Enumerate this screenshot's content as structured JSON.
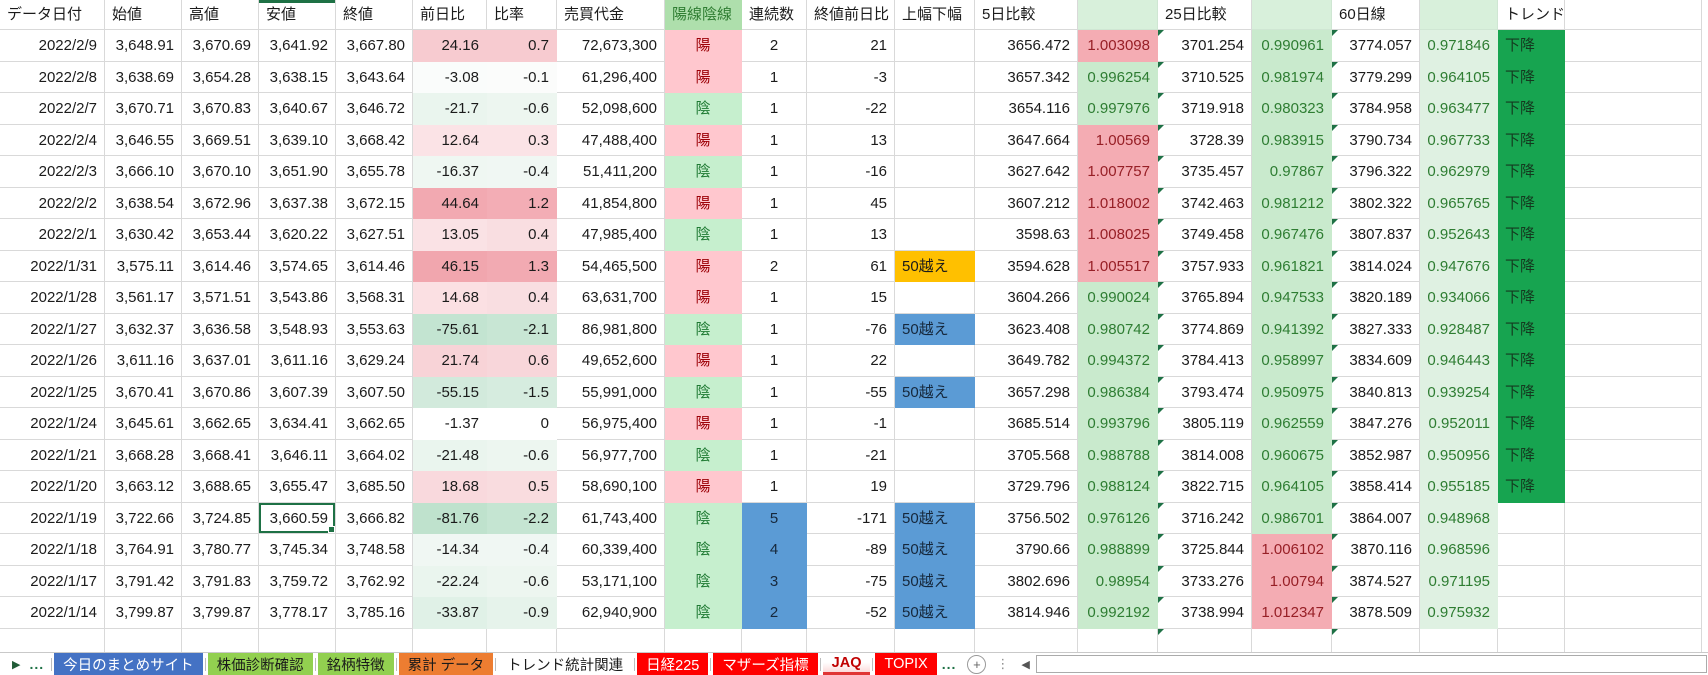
{
  "columns": [
    {
      "key": "date",
      "label": "データ日付",
      "cls": "num"
    },
    {
      "key": "open",
      "label": "始値",
      "cls": "num"
    },
    {
      "key": "high",
      "label": "高値",
      "cls": "num"
    },
    {
      "key": "low",
      "label": "安値",
      "cls": "num",
      "hcls": "selcol"
    },
    {
      "key": "close",
      "label": "終値",
      "cls": "num"
    },
    {
      "key": "chg",
      "label": "前日比",
      "cls": "num",
      "bgKey": "chg_bg"
    },
    {
      "key": "rate",
      "label": "比率",
      "cls": "num",
      "bgKey": "rate_bg"
    },
    {
      "key": "volume",
      "label": "売買代金",
      "cls": "num"
    },
    {
      "key": "candle",
      "label": "陽線陰線",
      "cls": "ctr",
      "clsKey": "candle_cls",
      "hcls": "hcandle"
    },
    {
      "key": "streak",
      "label": "連続数",
      "cls": "ctr",
      "clsKey": "streak_cls"
    },
    {
      "key": "diff",
      "label": "終値前日比",
      "cls": "num"
    },
    {
      "key": "range",
      "label": "上幅下幅",
      "cls": "left",
      "clsKey": "range_cls"
    },
    {
      "key": "d5",
      "label": "5日比較",
      "cls": "num"
    },
    {
      "key": "r5",
      "label": "",
      "cls": "num",
      "clsKey": "r5_cls",
      "hcls": "hgreen"
    },
    {
      "key": "d25",
      "label": "25日比較",
      "cls": "num tri"
    },
    {
      "key": "r25",
      "label": "",
      "cls": "num",
      "clsKey": "r25_cls",
      "hcls": "hgreen"
    },
    {
      "key": "d60",
      "label": "60日線",
      "cls": "num tri"
    },
    {
      "key": "r60",
      "label": "",
      "cls": "num",
      "clsKey": "r60_cls",
      "hcls": "hgreen"
    },
    {
      "key": "trend",
      "label": "トレンド",
      "cls": "left",
      "clsKey": "trend_cls"
    },
    {
      "key": "",
      "label": "",
      "cls": "filler"
    },
    {
      "key": "",
      "label": "",
      "cls": "edge"
    }
  ],
  "rows": [
    {
      "date": "2022/2/9",
      "open": "3,648.91",
      "high": "3,670.69",
      "low": "3,641.92",
      "close": "3,667.80",
      "chg": "24.16",
      "rate": "0.7",
      "volume": "72,673,300",
      "candle": "陽",
      "candle_cls": "yo",
      "streak": "2",
      "streak_cls": "",
      "diff": "21",
      "range": "",
      "range_cls": "",
      "d5": "3656.472",
      "r5": "1.003098",
      "r5_cls": "pink",
      "d25": "3701.254",
      "r25": "0.990961",
      "r25_cls": "green",
      "d60": "3774.057",
      "r60": "0.971846",
      "r60_cls": "green60",
      "trend": "下降",
      "trend_cls": "down",
      "chg_bg": "#F7CBD0",
      "rate_bg": "#F7CBD0"
    },
    {
      "date": "2022/2/8",
      "open": "3,638.69",
      "high": "3,654.28",
      "low": "3,638.15",
      "close": "3,643.64",
      "chg": "-3.08",
      "rate": "-0.1",
      "volume": "61,296,400",
      "candle": "陽",
      "candle_cls": "yo",
      "streak": "1",
      "streak_cls": "",
      "diff": "-3",
      "range": "",
      "range_cls": "",
      "d5": "3657.342",
      "r5": "0.996254",
      "r5_cls": "green",
      "d25": "3710.525",
      "r25": "0.981974",
      "r25_cls": "green",
      "d60": "3779.299",
      "r60": "0.964105",
      "r60_cls": "green60",
      "trend": "下降",
      "trend_cls": "down",
      "chg_bg": "#FAFCFB",
      "rate_bg": "#FBFCFB"
    },
    {
      "date": "2022/2/7",
      "open": "3,670.71",
      "high": "3,670.83",
      "low": "3,640.67",
      "close": "3,646.72",
      "chg": "-21.7",
      "rate": "-0.6",
      "volume": "52,098,600",
      "candle": "陰",
      "candle_cls": "in",
      "streak": "1",
      "streak_cls": "",
      "diff": "-22",
      "range": "",
      "range_cls": "",
      "d5": "3654.116",
      "r5": "0.997976",
      "r5_cls": "green",
      "d25": "3719.918",
      "r25": "0.980323",
      "r25_cls": "green",
      "d60": "3784.958",
      "r60": "0.963477",
      "r60_cls": "green60",
      "trend": "下降",
      "trend_cls": "down",
      "chg_bg": "#EAF5EE",
      "rate_bg": "#EDF6F0"
    },
    {
      "date": "2022/2/4",
      "open": "3,646.55",
      "high": "3,669.51",
      "low": "3,639.10",
      "close": "3,668.42",
      "chg": "12.64",
      "rate": "0.3",
      "volume": "47,488,400",
      "candle": "陽",
      "candle_cls": "yo",
      "streak": "1",
      "streak_cls": "",
      "diff": "13",
      "range": "",
      "range_cls": "",
      "d5": "3647.664",
      "r5": "1.00569",
      "r5_cls": "pink",
      "d25": "3728.39",
      "r25": "0.983915",
      "r25_cls": "green",
      "d60": "3790.734",
      "r60": "0.967733",
      "r60_cls": "green60",
      "trend": "下降",
      "trend_cls": "down",
      "chg_bg": "#FBE3E6",
      "rate_bg": "#FBE3E6"
    },
    {
      "date": "2022/2/3",
      "open": "3,666.10",
      "high": "3,670.10",
      "low": "3,651.90",
      "close": "3,655.78",
      "chg": "-16.37",
      "rate": "-0.4",
      "volume": "51,411,200",
      "candle": "陰",
      "candle_cls": "in",
      "streak": "1",
      "streak_cls": "",
      "diff": "-16",
      "range": "",
      "range_cls": "",
      "d5": "3627.642",
      "r5": "1.007757",
      "r5_cls": "pink",
      "d25": "3735.457",
      "r25": "0.97867",
      "r25_cls": "green",
      "d60": "3796.322",
      "r60": "0.962979",
      "r60_cls": "green60",
      "trend": "下降",
      "trend_cls": "down",
      "chg_bg": "#EFF7F2",
      "rate_bg": "#F0F7F3"
    },
    {
      "date": "2022/2/2",
      "open": "3,638.54",
      "high": "3,672.96",
      "low": "3,637.38",
      "close": "3,672.15",
      "chg": "44.64",
      "rate": "1.2",
      "volume": "41,854,800",
      "candle": "陽",
      "candle_cls": "yo",
      "streak": "1",
      "streak_cls": "",
      "diff": "45",
      "range": "",
      "range_cls": "",
      "d5": "3607.212",
      "r5": "1.018002",
      "r5_cls": "pink",
      "d25": "3742.463",
      "r25": "0.981212",
      "r25_cls": "green",
      "d60": "3802.322",
      "r60": "0.965765",
      "r60_cls": "green60",
      "trend": "下降",
      "trend_cls": "down",
      "chg_bg": "#F2A9B1",
      "rate_bg": "#F3ADB5"
    },
    {
      "date": "2022/2/1",
      "open": "3,630.42",
      "high": "3,653.44",
      "low": "3,620.22",
      "close": "3,627.51",
      "chg": "13.05",
      "rate": "0.4",
      "volume": "47,985,400",
      "candle": "陰",
      "candle_cls": "in",
      "streak": "1",
      "streak_cls": "",
      "diff": "13",
      "range": "",
      "range_cls": "",
      "d5": "3598.63",
      "r5": "1.008025",
      "r5_cls": "pink",
      "d25": "3749.458",
      "r25": "0.967476",
      "r25_cls": "green",
      "d60": "3807.837",
      "r60": "0.952643",
      "r60_cls": "green60",
      "trend": "下降",
      "trend_cls": "down",
      "chg_bg": "#FAE2E5",
      "rate_bg": "#F9DEE1"
    },
    {
      "date": "2022/1/31",
      "open": "3,575.11",
      "high": "3,614.46",
      "low": "3,574.65",
      "close": "3,614.46",
      "chg": "46.15",
      "rate": "1.3",
      "volume": "54,465,500",
      "candle": "陽",
      "candle_cls": "yo",
      "streak": "2",
      "streak_cls": "",
      "diff": "61",
      "range": "50越え",
      "range_cls": "orange",
      "d5": "3594.628",
      "r5": "1.005517",
      "r5_cls": "pink",
      "d25": "3757.933",
      "r25": "0.961821",
      "r25_cls": "green",
      "d60": "3814.024",
      "r60": "0.947676",
      "r60_cls": "green60",
      "trend": "下降",
      "trend_cls": "down",
      "chg_bg": "#F1A6AE",
      "rate_bg": "#F2AAB2"
    },
    {
      "date": "2022/1/28",
      "open": "3,561.17",
      "high": "3,571.51",
      "low": "3,543.86",
      "close": "3,568.31",
      "chg": "14.68",
      "rate": "0.4",
      "volume": "63,631,700",
      "candle": "陽",
      "candle_cls": "yo",
      "streak": "1",
      "streak_cls": "",
      "diff": "15",
      "range": "",
      "range_cls": "",
      "d5": "3604.266",
      "r5": "0.990024",
      "r5_cls": "green",
      "d25": "3765.894",
      "r25": "0.947533",
      "r25_cls": "green",
      "d60": "3820.189",
      "r60": "0.934066",
      "r60_cls": "green60",
      "trend": "下降",
      "trend_cls": "down",
      "chg_bg": "#FBE0E3",
      "rate_bg": "#F9DEE1"
    },
    {
      "date": "2022/1/27",
      "open": "3,632.37",
      "high": "3,636.58",
      "low": "3,548.93",
      "close": "3,553.63",
      "chg": "-75.61",
      "rate": "-2.1",
      "volume": "86,981,800",
      "candle": "陰",
      "candle_cls": "in",
      "streak": "1",
      "streak_cls": "",
      "diff": "-76",
      "range": "50越え",
      "range_cls": "blue",
      "d5": "3623.408",
      "r5": "0.980742",
      "r5_cls": "green",
      "d25": "3774.869",
      "r25": "0.941392",
      "r25_cls": "green",
      "d60": "3827.333",
      "r60": "0.928487",
      "r60_cls": "green60",
      "trend": "下降",
      "trend_cls": "down",
      "chg_bg": "#C3E4D1",
      "rate_bg": "#C8E6D4"
    },
    {
      "date": "2022/1/26",
      "open": "3,611.16",
      "high": "3,637.01",
      "low": "3,611.16",
      "close": "3,629.24",
      "chg": "21.74",
      "rate": "0.6",
      "volume": "49,652,600",
      "candle": "陽",
      "candle_cls": "yo",
      "streak": "1",
      "streak_cls": "",
      "diff": "22",
      "range": "",
      "range_cls": "",
      "d5": "3649.782",
      "r5": "0.994372",
      "r5_cls": "green",
      "d25": "3784.413",
      "r25": "0.958997",
      "r25_cls": "green",
      "d60": "3834.609",
      "r60": "0.946443",
      "r60_cls": "green60",
      "trend": "下降",
      "trend_cls": "down",
      "chg_bg": "#F8D3D7",
      "rate_bg": "#F8D6DA"
    },
    {
      "date": "2022/1/25",
      "open": "3,670.41",
      "high": "3,670.86",
      "low": "3,607.39",
      "close": "3,607.50",
      "chg": "-55.15",
      "rate": "-1.5",
      "volume": "55,991,000",
      "candle": "陰",
      "candle_cls": "in",
      "streak": "1",
      "streak_cls": "",
      "diff": "-55",
      "range": "50越え",
      "range_cls": "blue",
      "d5": "3657.298",
      "r5": "0.986384",
      "r5_cls": "green",
      "d25": "3793.474",
      "r25": "0.950975",
      "r25_cls": "green",
      "d60": "3840.813",
      "r60": "0.939254",
      "r60_cls": "green60",
      "trend": "下降",
      "trend_cls": "down",
      "chg_bg": "#D2EADC",
      "rate_bg": "#D6ECDF"
    },
    {
      "date": "2022/1/24",
      "open": "3,645.61",
      "high": "3,662.65",
      "low": "3,634.41",
      "close": "3,662.65",
      "chg": "-1.37",
      "rate": "0",
      "volume": "56,975,400",
      "candle": "陽",
      "candle_cls": "yo",
      "streak": "1",
      "streak_cls": "",
      "diff": "-1",
      "range": "",
      "range_cls": "",
      "d5": "3685.514",
      "r5": "0.993796",
      "r5_cls": "green",
      "d25": "3805.119",
      "r25": "0.962559",
      "r25_cls": "green",
      "d60": "3847.276",
      "r60": "0.952011",
      "r60_cls": "green60",
      "trend": "下降",
      "trend_cls": "down",
      "chg_bg": "#FFFFFF",
      "rate_bg": "#FFFFFF"
    },
    {
      "date": "2022/1/21",
      "open": "3,668.28",
      "high": "3,668.41",
      "low": "3,646.11",
      "close": "3,664.02",
      "chg": "-21.48",
      "rate": "-0.6",
      "volume": "56,977,700",
      "candle": "陰",
      "candle_cls": "in",
      "streak": "1",
      "streak_cls": "",
      "diff": "-21",
      "range": "",
      "range_cls": "",
      "d5": "3705.568",
      "r5": "0.988788",
      "r5_cls": "green",
      "d25": "3814.008",
      "r25": "0.960675",
      "r25_cls": "green",
      "d60": "3852.987",
      "r60": "0.950956",
      "r60_cls": "green60",
      "trend": "下降",
      "trend_cls": "down",
      "chg_bg": "#EAF5EE",
      "rate_bg": "#EDF6F0"
    },
    {
      "date": "2022/1/20",
      "open": "3,663.12",
      "high": "3,688.65",
      "low": "3,655.47",
      "close": "3,685.50",
      "chg": "18.68",
      "rate": "0.5",
      "volume": "58,690,100",
      "candle": "陽",
      "candle_cls": "yo",
      "streak": "1",
      "streak_cls": "",
      "diff": "19",
      "range": "",
      "range_cls": "",
      "d5": "3729.796",
      "r5": "0.988124",
      "r5_cls": "green",
      "d25": "3822.715",
      "r25": "0.964105",
      "r25_cls": "green",
      "d60": "3858.414",
      "r60": "0.955185",
      "r60_cls": "green60",
      "trend": "下降",
      "trend_cls": "down",
      "chg_bg": "#F9D9DD",
      "rate_bg": "#F9DCDF"
    },
    {
      "date": "2022/1/19",
      "open": "3,722.66",
      "high": "3,724.85",
      "low": "3,660.59",
      "close": "3,666.82",
      "chg": "-81.76",
      "rate": "-2.2",
      "volume": "61,743,400",
      "candle": "陰",
      "candle_cls": "in",
      "streak": "5",
      "streak_cls": "blue",
      "diff": "-171",
      "range": "50越え",
      "range_cls": "blue",
      "d5": "3756.502",
      "r5": "0.976126",
      "r5_cls": "green",
      "d25": "3716.242",
      "r25": "0.986701",
      "r25_cls": "green",
      "d60": "3864.007",
      "r60": "0.948968",
      "r60_cls": "green60",
      "trend": "",
      "trend_cls": "",
      "chg_bg": "#BFE2CD",
      "rate_bg": "#C5E5D2"
    },
    {
      "date": "2022/1/18",
      "open": "3,764.91",
      "high": "3,780.77",
      "low": "3,745.34",
      "close": "3,748.58",
      "chg": "-14.34",
      "rate": "-0.4",
      "volume": "60,339,400",
      "candle": "陰",
      "candle_cls": "in",
      "streak": "4",
      "streak_cls": "blue",
      "diff": "-89",
      "range": "50越え",
      "range_cls": "blue",
      "d5": "3790.66",
      "r5": "0.988899",
      "r5_cls": "green",
      "d25": "3725.844",
      "r25": "1.006102",
      "r25_cls": "pink",
      "d60": "3870.116",
      "r60": "0.968596",
      "r60_cls": "green60",
      "trend": "",
      "trend_cls": "",
      "chg_bg": "#F0F7F3",
      "rate_bg": "#F0F7F3"
    },
    {
      "date": "2022/1/17",
      "open": "3,791.42",
      "high": "3,791.83",
      "low": "3,759.72",
      "close": "3,762.92",
      "chg": "-22.24",
      "rate": "-0.6",
      "volume": "53,171,100",
      "candle": "陰",
      "candle_cls": "in",
      "streak": "3",
      "streak_cls": "blue",
      "diff": "-75",
      "range": "50越え",
      "range_cls": "blue",
      "d5": "3802.696",
      "r5": "0.98954",
      "r5_cls": "green",
      "d25": "3733.276",
      "r25": "1.00794",
      "r25_cls": "pink",
      "d60": "3874.527",
      "r60": "0.971195",
      "r60_cls": "green60",
      "trend": "",
      "trend_cls": "",
      "chg_bg": "#EAF5EE",
      "rate_bg": "#EDF6F0"
    },
    {
      "date": "2022/1/14",
      "open": "3,799.87",
      "high": "3,799.87",
      "low": "3,778.17",
      "close": "3,785.16",
      "chg": "-33.87",
      "rate": "-0.9",
      "volume": "62,940,900",
      "candle": "陰",
      "candle_cls": "in",
      "streak": "2",
      "streak_cls": "blue",
      "diff": "-52",
      "range": "50越え",
      "range_cls": "blue",
      "d5": "3814.946",
      "r5": "0.992192",
      "r5_cls": "green",
      "d25": "3738.994",
      "r25": "1.012347",
      "r25_cls": "pink",
      "d60": "3878.509",
      "r60": "0.975932",
      "r60_cls": "green60",
      "trend": "",
      "trend_cls": "",
      "chg_bg": "#E0F1E7",
      "rate_bg": "#E6F3EB"
    }
  ],
  "selection": {
    "row_index": 15,
    "col": "low"
  },
  "bottom_bar": {
    "nav_arrow": "▶",
    "overflow_left": "...",
    "tabs": [
      {
        "label": "今日のまとめサイト",
        "bg": "#4472C4",
        "fg": "#FFFFFF"
      },
      {
        "label": "株価診断確認",
        "bg": "#92D050",
        "fg": "#1a1a1a"
      },
      {
        "label": "銘柄特徴",
        "bg": "#92D050",
        "fg": "#1a1a1a"
      },
      {
        "label": "累計 データ",
        "bg": "#ED7D31",
        "fg": "#1a1a1a"
      },
      {
        "label": "トレンド統計関連",
        "bg": "",
        "fg": "#1a1a1a"
      },
      {
        "label": "日経225",
        "bg": "#FF0000",
        "fg": "#FFFFFF"
      },
      {
        "label": "マザーズ指標",
        "bg": "#FF0000",
        "fg": "#FFFFFF"
      },
      {
        "label": "JAQ",
        "bg": "",
        "fg": "#C00000",
        "active": true
      },
      {
        "label": "TOPIX",
        "bg": "#FF0000",
        "fg": "#FFFFFF"
      }
    ],
    "overflow_right": "...",
    "add_sheet": "+",
    "divider_dots": "⋮",
    "scroll_left": "◀"
  },
  "colors": {
    "selection_border": "#1E7145",
    "gridline": "#D9D9D9",
    "candle_bull_bg": "#FFC7CE",
    "candle_bull_fg": "#9C0006",
    "candle_bear_bg": "#C6EFCE",
    "candle_bear_fg": "#1F7A33",
    "highlight_blue": "#5B9BD5",
    "highlight_orange": "#FFC000",
    "trend_down_bg": "#17A450",
    "ratio_up_bg": "#F4ACB3",
    "ratio_down_bg": "#C9EACD"
  }
}
